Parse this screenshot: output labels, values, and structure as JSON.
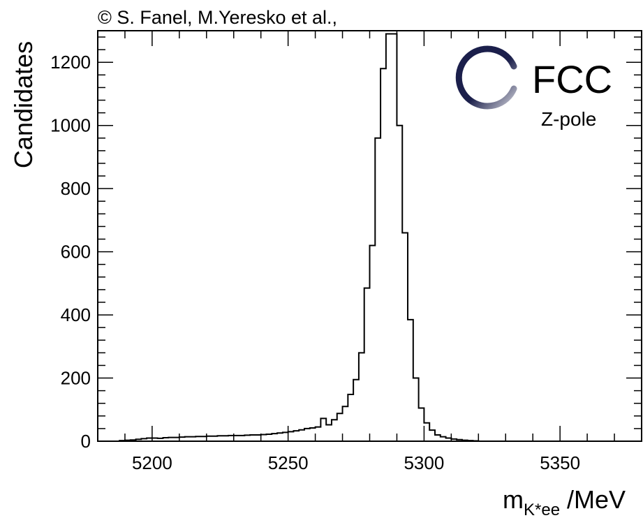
{
  "header": {
    "credit": "© S. Fanel, M.Yeresko et al.,"
  },
  "logo": {
    "text": "FCC",
    "subtext": "Z-pole",
    "color": "#1b1f4b"
  },
  "chart_data": {
    "type": "histogram",
    "ylabel": "Candidates",
    "xlabel_main": "m",
    "xlabel_sub": "K*ee",
    "xlabel_unit": " /MeV",
    "xlim": [
      5180,
      5380
    ],
    "ylim": [
      0,
      1300
    ],
    "xticks": [
      5200,
      5250,
      5300,
      5350
    ],
    "yticks": [
      0,
      200,
      400,
      600,
      800,
      1000,
      1200
    ],
    "bin_width": 2,
    "bins_start": 5180,
    "values": [
      0,
      0,
      0,
      0,
      2,
      3,
      4,
      6,
      8,
      10,
      10,
      9,
      11,
      12,
      12,
      13,
      14,
      14,
      15,
      15,
      16,
      16,
      17,
      17,
      18,
      18,
      18,
      19,
      20,
      20,
      21,
      22,
      24,
      26,
      28,
      30,
      33,
      36,
      40,
      42,
      45,
      72,
      52,
      68,
      88,
      110,
      148,
      195,
      280,
      485,
      620,
      960,
      1180,
      1290,
      1290,
      1000,
      660,
      385,
      200,
      105,
      58,
      35,
      20,
      14,
      10,
      7,
      5,
      3,
      2,
      1,
      0,
      0,
      0,
      0,
      0,
      0,
      0,
      0,
      0,
      0,
      0,
      0,
      0,
      0,
      0,
      0,
      0,
      0,
      0,
      0,
      0,
      0,
      0,
      0,
      0,
      0,
      0,
      0,
      0,
      0
    ],
    "line_color": "#000000",
    "grid": false,
    "legend": "none"
  }
}
